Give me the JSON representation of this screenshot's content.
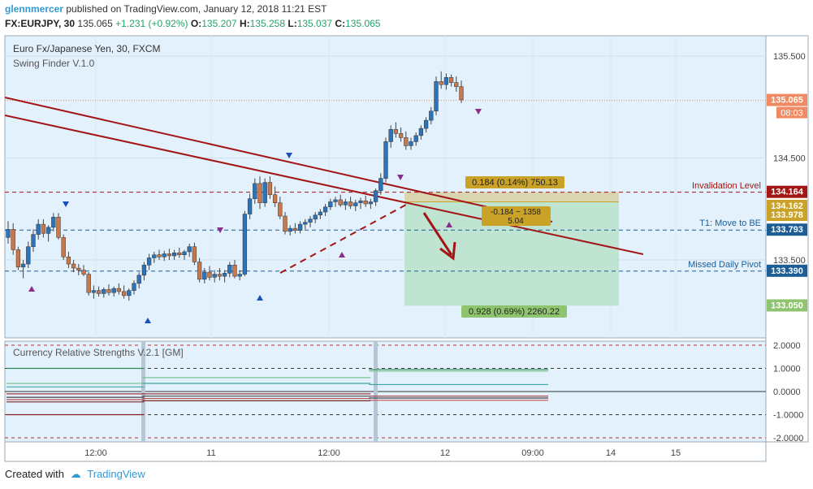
{
  "header": {
    "author": "glennmercer",
    "published_text": "published on TradingView.com, January 12, 2018 11:21 EST",
    "symbol": "FX:EURJPY, 30",
    "price": "135.065",
    "change": "+1.231 (+0.92%)",
    "o_label": "O:",
    "o": "135.207",
    "h_label": "H:",
    "h": "135.258",
    "l_label": "L:",
    "l": "135.037",
    "c_label": "C:",
    "c": "135.065"
  },
  "legend": {
    "title": "Euro Fx/Japanese Yen, 30, FXCM",
    "indicator": "Swing Finder V.1.0",
    "sub_indicator": "Currency Relative Strengths V.2.1 [GM]"
  },
  "colors": {
    "chart_bg": "#e3f1fd",
    "up": "#2d73b9",
    "down": "#c8784a",
    "trendline": "#a21616",
    "invalidation": "#a21616",
    "pivot": "#1c5d96",
    "target_green": "#b8e2c9",
    "stop_tan": "#d6d0a2"
  },
  "chart_data": {
    "type": "candlestick",
    "title": "Euro Fx/Japanese Yen, 30, FXCM",
    "y_range": [
      133.0,
      135.6
    ],
    "y_ticks": [
      135.5,
      134.5,
      133.5
    ],
    "x_ticks": [
      "12:00",
      "11",
      "12:00",
      "12",
      "09:00",
      "14",
      "15"
    ],
    "price_badges": [
      {
        "label": "135.065",
        "sub": "08:03",
        "value": 135.065,
        "color": "#ef8a62"
      },
      {
        "label": "134.164",
        "value": 134.164,
        "color": "#a21616"
      },
      {
        "label": "134.162",
        "value": 134.162,
        "color": "#c9a227"
      },
      {
        "label": "133.978",
        "value": 133.978,
        "color": "#c9a227"
      },
      {
        "label": "133.793",
        "value": 133.793,
        "color": "#1c5d96"
      },
      {
        "label": "133.390",
        "value": 133.39,
        "color": "#1c5d96"
      },
      {
        "label": "133.050",
        "value": 133.05,
        "color": "#8fc46f"
      }
    ],
    "levels": [
      {
        "name": "Invalidation Level",
        "value": 134.164
      },
      {
        "name": "T1:  Move to BE",
        "value": 133.793
      },
      {
        "name": "Missed Daily Pivot",
        "value": 133.39
      }
    ],
    "position": {
      "entry": 134.07,
      "stop_label": "0.184 (0.14%) 750.13",
      "target_label": "0.928 (0.69%) 2260.22",
      "info_label_1": "-0.184 ~ 1358",
      "info_label_2": "5.04"
    },
    "candles": [
      [
        133.72,
        133.88,
        133.66,
        133.8
      ],
      [
        133.8,
        133.86,
        133.55,
        133.6
      ],
      [
        133.6,
        133.63,
        133.4,
        133.43
      ],
      [
        133.43,
        133.5,
        133.32,
        133.46
      ],
      [
        133.46,
        133.68,
        133.42,
        133.63
      ],
      [
        133.63,
        133.8,
        133.58,
        133.75
      ],
      [
        133.75,
        133.9,
        133.7,
        133.85
      ],
      [
        133.85,
        133.9,
        133.72,
        133.76
      ],
      [
        133.76,
        133.84,
        133.68,
        133.82
      ],
      [
        133.82,
        133.96,
        133.78,
        133.92
      ],
      [
        133.92,
        133.96,
        133.7,
        133.72
      ],
      [
        133.72,
        133.75,
        133.5,
        133.53
      ],
      [
        133.53,
        133.58,
        133.42,
        133.46
      ],
      [
        133.46,
        133.5,
        133.38,
        133.42
      ],
      [
        133.42,
        133.46,
        133.35,
        133.4
      ],
      [
        133.4,
        133.45,
        133.34,
        133.36
      ],
      [
        133.36,
        133.38,
        133.15,
        133.18
      ],
      [
        133.18,
        133.25,
        133.12,
        133.2
      ],
      [
        133.2,
        133.24,
        133.14,
        133.17
      ],
      [
        133.17,
        133.23,
        133.13,
        133.21
      ],
      [
        133.21,
        133.26,
        133.15,
        133.18
      ],
      [
        133.18,
        133.24,
        133.14,
        133.22
      ],
      [
        133.22,
        133.27,
        133.16,
        133.19
      ],
      [
        133.19,
        133.25,
        133.12,
        133.15
      ],
      [
        133.15,
        133.22,
        133.1,
        133.2
      ],
      [
        133.2,
        133.3,
        133.16,
        133.27
      ],
      [
        133.27,
        133.38,
        133.22,
        133.35
      ],
      [
        133.35,
        133.48,
        133.3,
        133.45
      ],
      [
        133.45,
        133.56,
        133.4,
        133.52
      ],
      [
        133.52,
        133.58,
        133.47,
        133.55
      ],
      [
        133.55,
        133.6,
        133.5,
        133.53
      ],
      [
        133.53,
        133.59,
        133.49,
        133.56
      ],
      [
        133.56,
        133.61,
        133.5,
        133.54
      ],
      [
        133.54,
        133.6,
        133.5,
        133.57
      ],
      [
        133.57,
        133.62,
        133.52,
        133.55
      ],
      [
        133.55,
        133.6,
        133.5,
        133.58
      ],
      [
        133.58,
        133.66,
        133.53,
        133.63
      ],
      [
        133.63,
        133.67,
        133.45,
        133.48
      ],
      [
        133.48,
        133.52,
        133.28,
        133.31
      ],
      [
        133.31,
        133.42,
        133.27,
        133.38
      ],
      [
        133.38,
        133.44,
        133.3,
        133.33
      ],
      [
        133.33,
        133.4,
        133.28,
        133.36
      ],
      [
        133.36,
        133.42,
        133.3,
        133.34
      ],
      [
        133.34,
        133.4,
        133.28,
        133.37
      ],
      [
        133.37,
        133.48,
        133.33,
        133.45
      ],
      [
        133.45,
        133.5,
        133.32,
        133.34
      ],
      [
        133.34,
        133.4,
        133.3,
        133.36
      ],
      [
        133.36,
        133.98,
        133.34,
        133.95
      ],
      [
        133.95,
        134.15,
        133.9,
        134.1
      ],
      [
        134.1,
        134.3,
        134.05,
        134.25
      ],
      [
        134.25,
        134.32,
        134.0,
        134.06
      ],
      [
        134.06,
        134.3,
        134.02,
        134.26
      ],
      [
        134.26,
        134.32,
        134.1,
        134.14
      ],
      [
        134.14,
        134.22,
        134.02,
        134.06
      ],
      [
        134.06,
        134.12,
        133.9,
        133.93
      ],
      [
        133.93,
        133.97,
        133.75,
        133.78
      ],
      [
        133.78,
        133.84,
        133.74,
        133.81
      ],
      [
        133.81,
        133.86,
        133.76,
        133.79
      ],
      [
        133.79,
        133.88,
        133.76,
        133.85
      ],
      [
        133.85,
        133.9,
        133.8,
        133.87
      ],
      [
        133.87,
        133.93,
        133.82,
        133.9
      ],
      [
        133.9,
        133.97,
        133.86,
        133.94
      ],
      [
        133.94,
        134.0,
        133.9,
        133.97
      ],
      [
        133.97,
        134.05,
        133.93,
        134.02
      ],
      [
        134.02,
        134.1,
        133.99,
        134.07
      ],
      [
        134.07,
        134.12,
        134.02,
        134.09
      ],
      [
        134.09,
        134.14,
        134.02,
        134.04
      ],
      [
        134.04,
        134.1,
        133.99,
        134.07
      ],
      [
        134.07,
        134.12,
        134.0,
        134.03
      ],
      [
        134.03,
        134.09,
        133.98,
        134.06
      ],
      [
        134.06,
        134.11,
        134.0,
        134.08
      ],
      [
        134.08,
        134.13,
        134.02,
        134.05
      ],
      [
        134.05,
        134.1,
        134.0,
        134.07
      ],
      [
        134.07,
        134.2,
        134.03,
        134.18
      ],
      [
        134.18,
        134.35,
        134.14,
        134.3
      ],
      [
        134.3,
        134.7,
        134.26,
        134.66
      ],
      [
        134.66,
        134.82,
        134.6,
        134.78
      ],
      [
        134.78,
        134.85,
        134.7,
        134.74
      ],
      [
        134.74,
        134.8,
        134.66,
        134.7
      ],
      [
        134.7,
        134.76,
        134.58,
        134.62
      ],
      [
        134.62,
        134.7,
        134.58,
        134.66
      ],
      [
        134.66,
        134.75,
        134.62,
        134.72
      ],
      [
        134.72,
        134.82,
        134.68,
        134.79
      ],
      [
        134.79,
        134.9,
        134.75,
        134.87
      ],
      [
        134.87,
        135.0,
        134.83,
        134.96
      ],
      [
        134.96,
        135.3,
        134.92,
        135.25
      ],
      [
        135.25,
        135.35,
        135.18,
        135.22
      ],
      [
        135.22,
        135.33,
        135.17,
        135.29
      ],
      [
        135.29,
        135.32,
        135.2,
        135.24
      ],
      [
        135.24,
        135.3,
        135.15,
        135.2
      ],
      [
        135.2,
        135.26,
        135.04,
        135.07
      ]
    ]
  },
  "sub_chart_data": {
    "type": "line",
    "title": "Currency Relative Strengths V.2.1 [GM]",
    "y_range": [
      -2.2,
      2.2
    ],
    "y_ticks": [
      "2.0000",
      "1.0000",
      "0.0000",
      "-1.0000",
      "-2.0000"
    ],
    "segments": [
      {
        "x_range": [
          0,
          27
        ],
        "values": [
          1.0,
          0.35,
          0.2,
          -0.1,
          -0.25,
          -0.35,
          -0.45,
          -1.0
        ],
        "colors": [
          "#2e8b57",
          "#7cc38e",
          "#3aa8a0",
          "#9b3b3b",
          "#444",
          "#c05050",
          "#7a2a2a",
          "#8b1a1a"
        ]
      },
      {
        "x_range": [
          27,
          72
        ],
        "values": [
          0.6,
          0.35,
          -0.1,
          -0.2,
          -0.3,
          -0.4
        ],
        "colors": [
          "#7cc38e",
          "#3aa8a0",
          "#9b3b3b",
          "#444",
          "#c05050",
          "#7a2a2a"
        ]
      },
      {
        "x_range": [
          72,
          108
        ],
        "values": [
          0.95,
          0.88,
          0.3,
          -0.2,
          -0.28,
          -0.38
        ],
        "colors": [
          "#2e8b57",
          "#7cc38e",
          "#3aa8a0",
          "#9b3b3b",
          "#444",
          "#c05050"
        ]
      }
    ]
  },
  "footer": {
    "created_with": "Created with",
    "brand": "TradingView"
  }
}
